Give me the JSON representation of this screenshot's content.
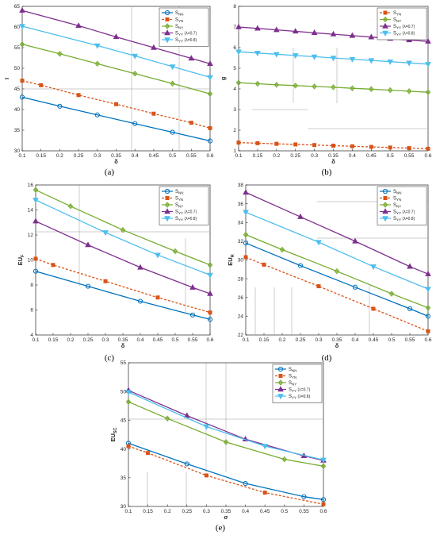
{
  "colors": {
    "S_NN": "#0072BD",
    "S_YN": "#D95319",
    "S_NY": "#77AC30",
    "S_YY_07": "#7E2F8E",
    "S_YY_08": "#4DBEEE"
  },
  "chart_data": [
    {
      "type": "line",
      "panel": "(a)",
      "xlabel": "δ",
      "ylabel": "I",
      "xlim": [
        0.1,
        0.6
      ],
      "ylim": [
        30,
        65
      ],
      "xticks": [
        "0.1",
        "0.15",
        "0.2",
        "0.25",
        "0.3",
        "0.35",
        "0.4",
        "0.45",
        "0.5",
        "0.55",
        "0.6"
      ],
      "yticks": [
        "30",
        "35",
        "40",
        "45",
        "50",
        "55",
        "60",
        "65"
      ],
      "legend": "top-right",
      "series": [
        {
          "name": "S",
          "sub": "NN",
          "suffix": "",
          "key": "S_NN",
          "marker": "circle",
          "dash": false,
          "x": [
            0.1,
            0.2,
            0.3,
            0.4,
            0.5,
            0.6
          ],
          "y": [
            43.0,
            40.8,
            38.7,
            36.6,
            34.5,
            32.4
          ]
        },
        {
          "name": "S",
          "sub": "YN",
          "suffix": "",
          "key": "S_YN",
          "marker": "square",
          "dash": true,
          "x": [
            0.1,
            0.15,
            0.25,
            0.35,
            0.45,
            0.55,
            0.6
          ],
          "y": [
            47.0,
            45.9,
            43.5,
            41.3,
            39.0,
            36.8,
            35.5
          ]
        },
        {
          "name": "S",
          "sub": "NY",
          "suffix": "",
          "key": "S_NY",
          "marker": "diamond",
          "dash": false,
          "x": [
            0.1,
            0.2,
            0.3,
            0.4,
            0.5,
            0.6
          ],
          "y": [
            55.8,
            53.5,
            51.1,
            48.7,
            46.3,
            43.8
          ]
        },
        {
          "name": "S",
          "sub": "YY",
          "suffix": "(λ=0.7)",
          "key": "S_YY_07",
          "marker": "triangle-up",
          "dash": false,
          "x": [
            0.1,
            0.25,
            0.35,
            0.45,
            0.55,
            0.6
          ],
          "y": [
            64.0,
            60.3,
            57.6,
            55.0,
            52.4,
            51.1
          ]
        },
        {
          "name": "S",
          "sub": "YY",
          "suffix": "(λ=0.8)",
          "key": "S_YY_08",
          "marker": "triangle-down",
          "dash": false,
          "x": [
            0.1,
            0.3,
            0.4,
            0.5,
            0.6
          ],
          "y": [
            60.2,
            55.5,
            53.0,
            50.4,
            47.8
          ]
        }
      ]
    },
    {
      "type": "line",
      "panel": "(b)",
      "xlabel": "δ",
      "ylabel": "g",
      "xlim": [
        0.1,
        0.6
      ],
      "ylim": [
        1,
        8
      ],
      "xticks": [
        "0.1",
        "0.15",
        "0.2",
        "0.25",
        "0.3",
        "0.35",
        "0.4",
        "0.45",
        "0.5",
        "0.55",
        "0.6"
      ],
      "yticks": [
        "1",
        "2",
        "3",
        "4",
        "5",
        "6",
        "7",
        "8"
      ],
      "legend": "top-right",
      "series": [
        {
          "name": "S",
          "sub": "YN",
          "suffix": "",
          "key": "S_YN",
          "marker": "square",
          "dash": true,
          "x": [
            0.1,
            0.15,
            0.2,
            0.25,
            0.3,
            0.35,
            0.4,
            0.45,
            0.5,
            0.55,
            0.6
          ],
          "y": [
            1.4,
            1.37,
            1.34,
            1.31,
            1.28,
            1.25,
            1.22,
            1.19,
            1.16,
            1.13,
            1.1
          ]
        },
        {
          "name": "S",
          "sub": "NY",
          "suffix": "",
          "key": "S_NY",
          "marker": "diamond",
          "dash": false,
          "x": [
            0.1,
            0.15,
            0.2,
            0.25,
            0.3,
            0.35,
            0.4,
            0.45,
            0.5,
            0.55,
            0.6
          ],
          "y": [
            4.3,
            4.25,
            4.2,
            4.16,
            4.12,
            4.08,
            4.03,
            3.99,
            3.94,
            3.89,
            3.84
          ]
        },
        {
          "name": "S",
          "sub": "YY",
          "suffix": "(λ=0.7)",
          "key": "S_YY_07",
          "marker": "triangle-up",
          "dash": false,
          "x": [
            0.1,
            0.15,
            0.2,
            0.25,
            0.3,
            0.35,
            0.4,
            0.45,
            0.5,
            0.55,
            0.6
          ],
          "y": [
            7.0,
            6.93,
            6.86,
            6.79,
            6.72,
            6.65,
            6.58,
            6.51,
            6.44,
            6.37,
            6.3
          ]
        },
        {
          "name": "S",
          "sub": "YY",
          "suffix": "(λ=0.8)",
          "key": "S_YY_08",
          "marker": "triangle-down",
          "dash": false,
          "x": [
            0.1,
            0.15,
            0.2,
            0.25,
            0.3,
            0.35,
            0.4,
            0.45,
            0.5,
            0.55,
            0.6
          ],
          "y": [
            5.8,
            5.74,
            5.68,
            5.62,
            5.56,
            5.5,
            5.44,
            5.38,
            5.32,
            5.26,
            5.2
          ]
        }
      ]
    },
    {
      "type": "line",
      "panel": "(c)",
      "xlabel": "δ",
      "ylabel": "EU",
      "ylabel_sub": "F",
      "xlim": [
        0.1,
        0.6
      ],
      "ylim": [
        4,
        16
      ],
      "xticks": [
        "0.1",
        "0.15",
        "0.2",
        "0.25",
        "0.3",
        "0.35",
        "0.4",
        "0.45",
        "0.5",
        "0.55",
        "0.6"
      ],
      "yticks": [
        "4",
        "6",
        "8",
        "10",
        "12",
        "14",
        "16"
      ],
      "legend": "top-right",
      "series": [
        {
          "name": "S",
          "sub": "NN",
          "suffix": "",
          "key": "S_NN",
          "marker": "circle",
          "dash": false,
          "x": [
            0.1,
            0.25,
            0.4,
            0.55,
            0.6
          ],
          "y": [
            9.1,
            7.9,
            6.7,
            5.6,
            5.25
          ]
        },
        {
          "name": "S",
          "sub": "YN",
          "suffix": "",
          "key": "S_YN",
          "marker": "square",
          "dash": true,
          "x": [
            0.1,
            0.15,
            0.3,
            0.45,
            0.6
          ],
          "y": [
            10.1,
            9.6,
            8.3,
            7.0,
            5.8
          ]
        },
        {
          "name": "S",
          "sub": "NY",
          "suffix": "",
          "key": "S_NY",
          "marker": "diamond",
          "dash": false,
          "x": [
            0.1,
            0.2,
            0.35,
            0.5,
            0.6
          ],
          "y": [
            15.6,
            14.3,
            12.4,
            10.7,
            9.6
          ]
        },
        {
          "name": "S",
          "sub": "YY",
          "suffix": "(λ=0.7)",
          "key": "S_YY_07",
          "marker": "triangle-up",
          "dash": false,
          "x": [
            0.1,
            0.25,
            0.4,
            0.55,
            0.6
          ],
          "y": [
            13.1,
            11.2,
            9.4,
            7.8,
            7.3
          ]
        },
        {
          "name": "S",
          "sub": "YY",
          "suffix": "(λ=0.8)",
          "key": "S_YY_08",
          "marker": "triangle-down",
          "dash": false,
          "x": [
            0.1,
            0.3,
            0.45,
            0.6
          ],
          "y": [
            14.8,
            12.2,
            10.4,
            8.8
          ]
        }
      ]
    },
    {
      "type": "line",
      "panel": "(d)",
      "xlabel": "δ",
      "ylabel": "EU",
      "ylabel_sub": "R",
      "xlim": [
        0.1,
        0.6
      ],
      "ylim": [
        22,
        38
      ],
      "xticks": [
        "0.1",
        "0.15",
        "0.2",
        "0.25",
        "0.3",
        "0.35",
        "0.4",
        "0.45",
        "0.5",
        "0.55",
        "0.6"
      ],
      "yticks": [
        "22",
        "24",
        "26",
        "28",
        "30",
        "32",
        "34",
        "36",
        "38"
      ],
      "legend": "top-right",
      "series": [
        {
          "name": "S",
          "sub": "NN",
          "suffix": "",
          "key": "S_NN",
          "marker": "circle",
          "dash": false,
          "x": [
            0.1,
            0.25,
            0.4,
            0.55,
            0.6
          ],
          "y": [
            31.8,
            29.4,
            27.1,
            24.8,
            24.0
          ]
        },
        {
          "name": "S",
          "sub": "YN",
          "suffix": "",
          "key": "S_YN",
          "marker": "square",
          "dash": true,
          "x": [
            0.1,
            0.15,
            0.3,
            0.45,
            0.6
          ],
          "y": [
            30.3,
            29.5,
            27.2,
            24.8,
            22.4
          ]
        },
        {
          "name": "S",
          "sub": "NY",
          "suffix": "",
          "key": "S_NY",
          "marker": "diamond",
          "dash": false,
          "x": [
            0.1,
            0.2,
            0.35,
            0.5,
            0.6
          ],
          "y": [
            32.7,
            31.1,
            28.8,
            26.4,
            24.9
          ]
        },
        {
          "name": "S",
          "sub": "YY",
          "suffix": "(λ=0.7)",
          "key": "S_YY_07",
          "marker": "triangle-up",
          "dash": false,
          "x": [
            0.1,
            0.25,
            0.4,
            0.55,
            0.6
          ],
          "y": [
            37.2,
            34.6,
            32.0,
            29.3,
            28.5
          ]
        },
        {
          "name": "S",
          "sub": "YY",
          "suffix": "(λ=0.8)",
          "key": "S_YY_08",
          "marker": "triangle-down",
          "dash": false,
          "x": [
            0.1,
            0.3,
            0.45,
            0.6
          ],
          "y": [
            35.1,
            31.9,
            29.3,
            26.9
          ]
        }
      ]
    },
    {
      "type": "line",
      "panel": "(e)",
      "xlabel": "σ",
      "ylabel": "EU",
      "ylabel_sub": "SC",
      "xlim": [
        0.1,
        0.6
      ],
      "ylim": [
        30,
        55
      ],
      "xticks": [
        "0.1",
        "0.15",
        "0.2",
        "0.25",
        "0.3",
        "0.35",
        "0.4",
        "0.45",
        "0.5",
        "0.55",
        "0.6"
      ],
      "yticks": [
        "30",
        "35",
        "40",
        "45",
        "50",
        "55"
      ],
      "legend": "top-right",
      "series": [
        {
          "name": "S",
          "sub": "NN",
          "suffix": "",
          "key": "S_NN",
          "marker": "circle",
          "dash": false,
          "x": [
            0.1,
            0.25,
            0.4,
            0.55,
            0.6
          ],
          "y": [
            41.0,
            37.4,
            34.0,
            31.7,
            31.2
          ]
        },
        {
          "name": "S",
          "sub": "YN",
          "suffix": "",
          "key": "S_YN",
          "marker": "square",
          "dash": true,
          "x": [
            0.1,
            0.15,
            0.3,
            0.45,
            0.6
          ],
          "y": [
            40.5,
            39.3,
            35.4,
            32.4,
            30.4
          ]
        },
        {
          "name": "S",
          "sub": "NY",
          "suffix": "",
          "key": "S_NY",
          "marker": "diamond",
          "dash": false,
          "x": [
            0.1,
            0.2,
            0.35,
            0.5,
            0.6
          ],
          "y": [
            48.2,
            45.3,
            41.2,
            38.2,
            37.0
          ]
        },
        {
          "name": "S",
          "sub": "YY",
          "suffix": "(λ=0.7)",
          "key": "S_YY_07",
          "marker": "triangle-up",
          "dash": false,
          "x": [
            0.1,
            0.25,
            0.4,
            0.55,
            0.6
          ],
          "y": [
            50.2,
            45.8,
            41.7,
            38.8,
            38.0
          ]
        },
        {
          "name": "S",
          "sub": "YY",
          "suffix": "(λ=0.8)",
          "key": "S_YY_08",
          "marker": "triangle-down",
          "dash": false,
          "x": [
            0.1,
            0.3,
            0.45,
            0.6
          ],
          "y": [
            49.9,
            43.9,
            40.5,
            38.1
          ]
        }
      ]
    }
  ]
}
